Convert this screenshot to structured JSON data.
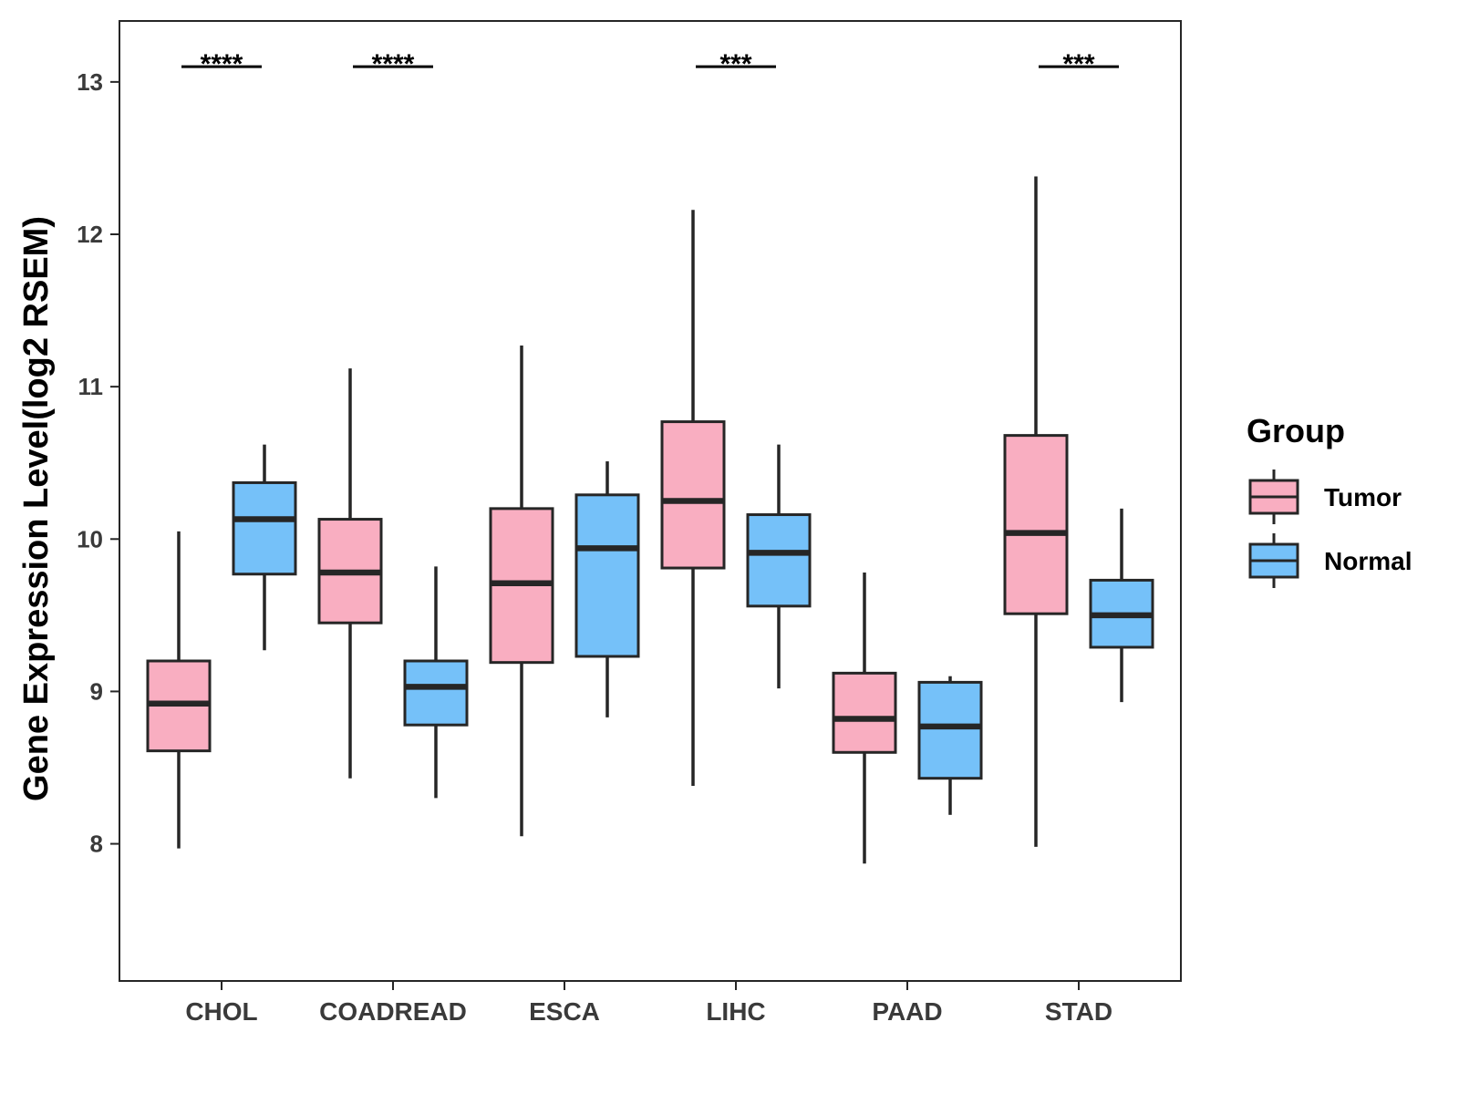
{
  "chart_data": {
    "type": "box",
    "ylabel": "Gene Expression Level(log2 RSEM)",
    "xlabel": "",
    "ylim": [
      7.1,
      13.4
    ],
    "yticks": [
      8,
      9,
      10,
      11,
      12,
      13
    ],
    "categories": [
      "CHOL",
      "COADREAD",
      "ESCA",
      "LIHC",
      "PAAD",
      "STAD"
    ],
    "legend": {
      "title": "Group",
      "position": "right",
      "entries": [
        {
          "name": "Tumor",
          "color": "#F9AEC1"
        },
        {
          "name": "Normal",
          "color": "#75C1F9"
        }
      ]
    },
    "series": [
      {
        "name": "Tumor",
        "color": "#F9AEC1",
        "boxes": [
          {
            "category": "CHOL",
            "min": 7.97,
            "q1": 8.61,
            "median": 8.92,
            "q3": 9.2,
            "max": 10.05
          },
          {
            "category": "COADREAD",
            "min": 8.43,
            "q1": 9.45,
            "median": 9.78,
            "q3": 10.13,
            "max": 11.12
          },
          {
            "category": "ESCA",
            "min": 8.05,
            "q1": 9.19,
            "median": 9.71,
            "q3": 10.2,
            "max": 11.27
          },
          {
            "category": "LIHC",
            "min": 8.38,
            "q1": 9.81,
            "median": 10.25,
            "q3": 10.77,
            "max": 12.16
          },
          {
            "category": "PAAD",
            "min": 7.87,
            "q1": 8.6,
            "median": 8.82,
            "q3": 9.12,
            "max": 9.78
          },
          {
            "category": "STAD",
            "min": 7.98,
            "q1": 9.51,
            "median": 10.04,
            "q3": 10.68,
            "max": 12.38
          }
        ]
      },
      {
        "name": "Normal",
        "color": "#75C1F9",
        "boxes": [
          {
            "category": "CHOL",
            "min": 9.27,
            "q1": 9.77,
            "median": 10.13,
            "q3": 10.37,
            "max": 10.62
          },
          {
            "category": "COADREAD",
            "min": 8.3,
            "q1": 8.78,
            "median": 9.03,
            "q3": 9.2,
            "max": 9.82
          },
          {
            "category": "ESCA",
            "min": 8.83,
            "q1": 9.23,
            "median": 9.94,
            "q3": 10.29,
            "max": 10.51
          },
          {
            "category": "LIHC",
            "min": 9.02,
            "q1": 9.56,
            "median": 9.91,
            "q3": 10.16,
            "max": 10.62
          },
          {
            "category": "PAAD",
            "min": 8.19,
            "q1": 8.43,
            "median": 8.77,
            "q3": 9.06,
            "max": 9.1
          },
          {
            "category": "STAD",
            "min": 8.93,
            "q1": 9.29,
            "median": 9.5,
            "q3": 9.73,
            "max": 10.2
          }
        ]
      }
    ],
    "significance": [
      {
        "category": "CHOL",
        "label": "****"
      },
      {
        "category": "COADREAD",
        "label": "****"
      },
      {
        "category": "LIHC",
        "label": "***"
      },
      {
        "category": "STAD",
        "label": "***"
      }
    ],
    "significance_level": 13.1
  }
}
